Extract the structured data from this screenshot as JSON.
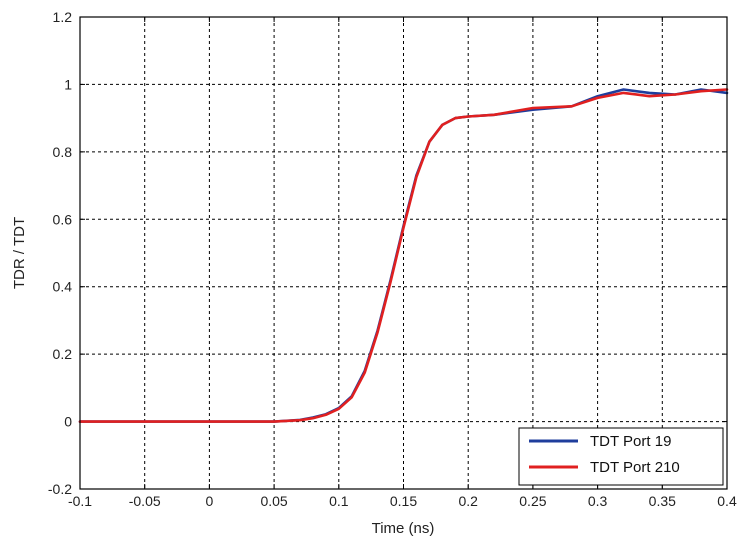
{
  "chart_data": {
    "type": "line",
    "title": "",
    "xlabel": "Time (ns)",
    "ylabel": "TDR / TDT",
    "xlim": [
      -0.1,
      0.4
    ],
    "ylim": [
      -0.2,
      1.2
    ],
    "xticks": [
      -0.1,
      -0.05,
      0,
      0.05,
      0.1,
      0.15,
      0.2,
      0.25,
      0.3,
      0.35,
      0.4
    ],
    "xtick_labels": [
      "-0.1",
      "-0.05",
      "0",
      "0.05",
      "0.1",
      "0.15",
      "0.2",
      "0.25",
      "0.3",
      "0.35",
      "0.4"
    ],
    "yticks": [
      -0.2,
      0,
      0.2,
      0.4,
      0.6,
      0.8,
      1,
      1.2
    ],
    "ytick_labels": [
      "-0.2",
      "0",
      "0.2",
      "0.4",
      "0.6",
      "0.8",
      "1",
      "1.2"
    ],
    "grid": true,
    "legend_position": "bottom-right",
    "x": [
      -0.1,
      0.05,
      0.07,
      0.08,
      0.09,
      0.1,
      0.11,
      0.12,
      0.13,
      0.14,
      0.15,
      0.16,
      0.17,
      0.18,
      0.19,
      0.2,
      0.22,
      0.25,
      0.28,
      0.3,
      0.32,
      0.34,
      0.36,
      0.38,
      0.4
    ],
    "series": [
      {
        "name": "TDT Port 19",
        "color": "#1f3d9c",
        "values": [
          0,
          0,
          0.005,
          0.012,
          0.022,
          0.04,
          0.075,
          0.15,
          0.27,
          0.42,
          0.58,
          0.73,
          0.83,
          0.88,
          0.9,
          0.905,
          0.91,
          0.925,
          0.935,
          0.965,
          0.985,
          0.975,
          0.97,
          0.985,
          0.975
        ]
      },
      {
        "name": "TDT Port 210",
        "color": "#e02020",
        "values": [
          0,
          0,
          0.004,
          0.01,
          0.02,
          0.038,
          0.072,
          0.145,
          0.265,
          0.415,
          0.575,
          0.725,
          0.83,
          0.88,
          0.9,
          0.905,
          0.91,
          0.93,
          0.935,
          0.96,
          0.975,
          0.965,
          0.97,
          0.98,
          0.985
        ]
      }
    ]
  }
}
